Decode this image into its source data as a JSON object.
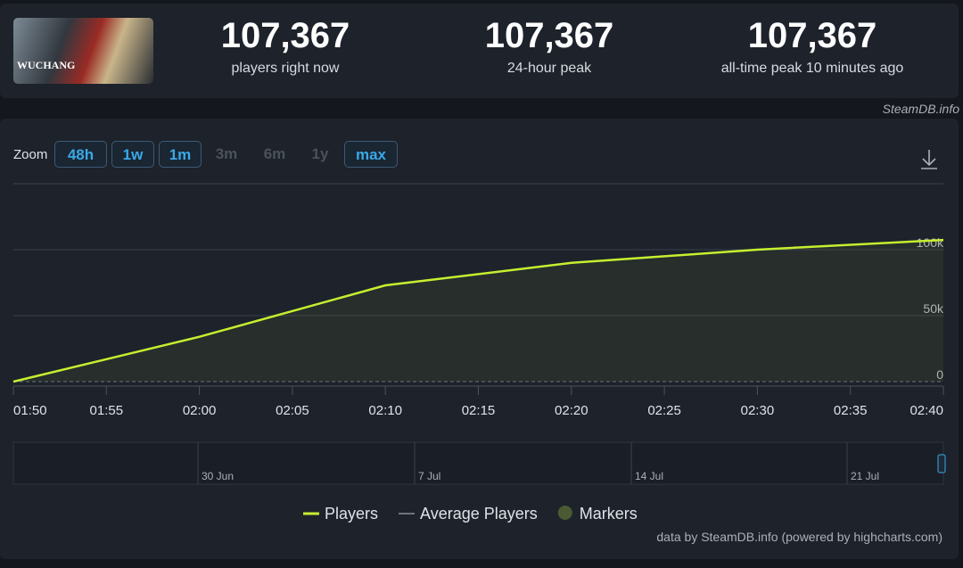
{
  "header": {
    "logo_text": "WUCHANG",
    "stats": [
      {
        "value": "107,367",
        "label": "players right now"
      },
      {
        "value": "107,367",
        "label": "24-hour peak"
      },
      {
        "value": "107,367",
        "label": "all-time peak 10 minutes ago"
      }
    ],
    "credit": "SteamDB.info"
  },
  "zoom": {
    "label": "Zoom",
    "buttons": [
      {
        "text": "48h",
        "enabled": true
      },
      {
        "text": "1w",
        "enabled": true
      },
      {
        "text": "1m",
        "enabled": true
      },
      {
        "text": "3m",
        "enabled": false
      },
      {
        "text": "6m",
        "enabled": false
      },
      {
        "text": "1y",
        "enabled": false
      },
      {
        "text": "max",
        "enabled": true
      }
    ]
  },
  "chart_data": {
    "type": "line",
    "x": [
      110,
      120,
      130,
      140,
      150,
      160
    ],
    "series": [
      {
        "name": "Players",
        "color": "#c6ef2f",
        "values": [
          0,
          34000,
          73000,
          90000,
          100000,
          107367
        ]
      }
    ],
    "other_legend_items": [
      {
        "name": "Average Players",
        "color": "#8a8f98"
      },
      {
        "name": "Markers",
        "color": "#4b5a32"
      }
    ],
    "xlim": [
      110,
      160
    ],
    "xticks": [
      {
        "value": 110,
        "label": "01:50"
      },
      {
        "value": 115,
        "label": "01:55"
      },
      {
        "value": 120,
        "label": "02:00"
      },
      {
        "value": 125,
        "label": "02:05"
      },
      {
        "value": 130,
        "label": "02:10"
      },
      {
        "value": 135,
        "label": "02:15"
      },
      {
        "value": 140,
        "label": "02:20"
      },
      {
        "value": 145,
        "label": "02:25"
      },
      {
        "value": 150,
        "label": "02:30"
      },
      {
        "value": 155,
        "label": "02:35"
      },
      {
        "value": 160,
        "label": "02:40"
      }
    ],
    "ylim": [
      0,
      150000
    ],
    "yticks": [
      0,
      {
        "value": 50000,
        "label": "50k"
      },
      {
        "value": 100000,
        "label": "100k"
      }
    ],
    "grid": true,
    "navigator_labels": [
      "30 Jun",
      "7 Jul",
      "14 Jul",
      "21 Jul"
    ],
    "footer": "data by SteamDB.info (powered by highcharts.com)"
  }
}
